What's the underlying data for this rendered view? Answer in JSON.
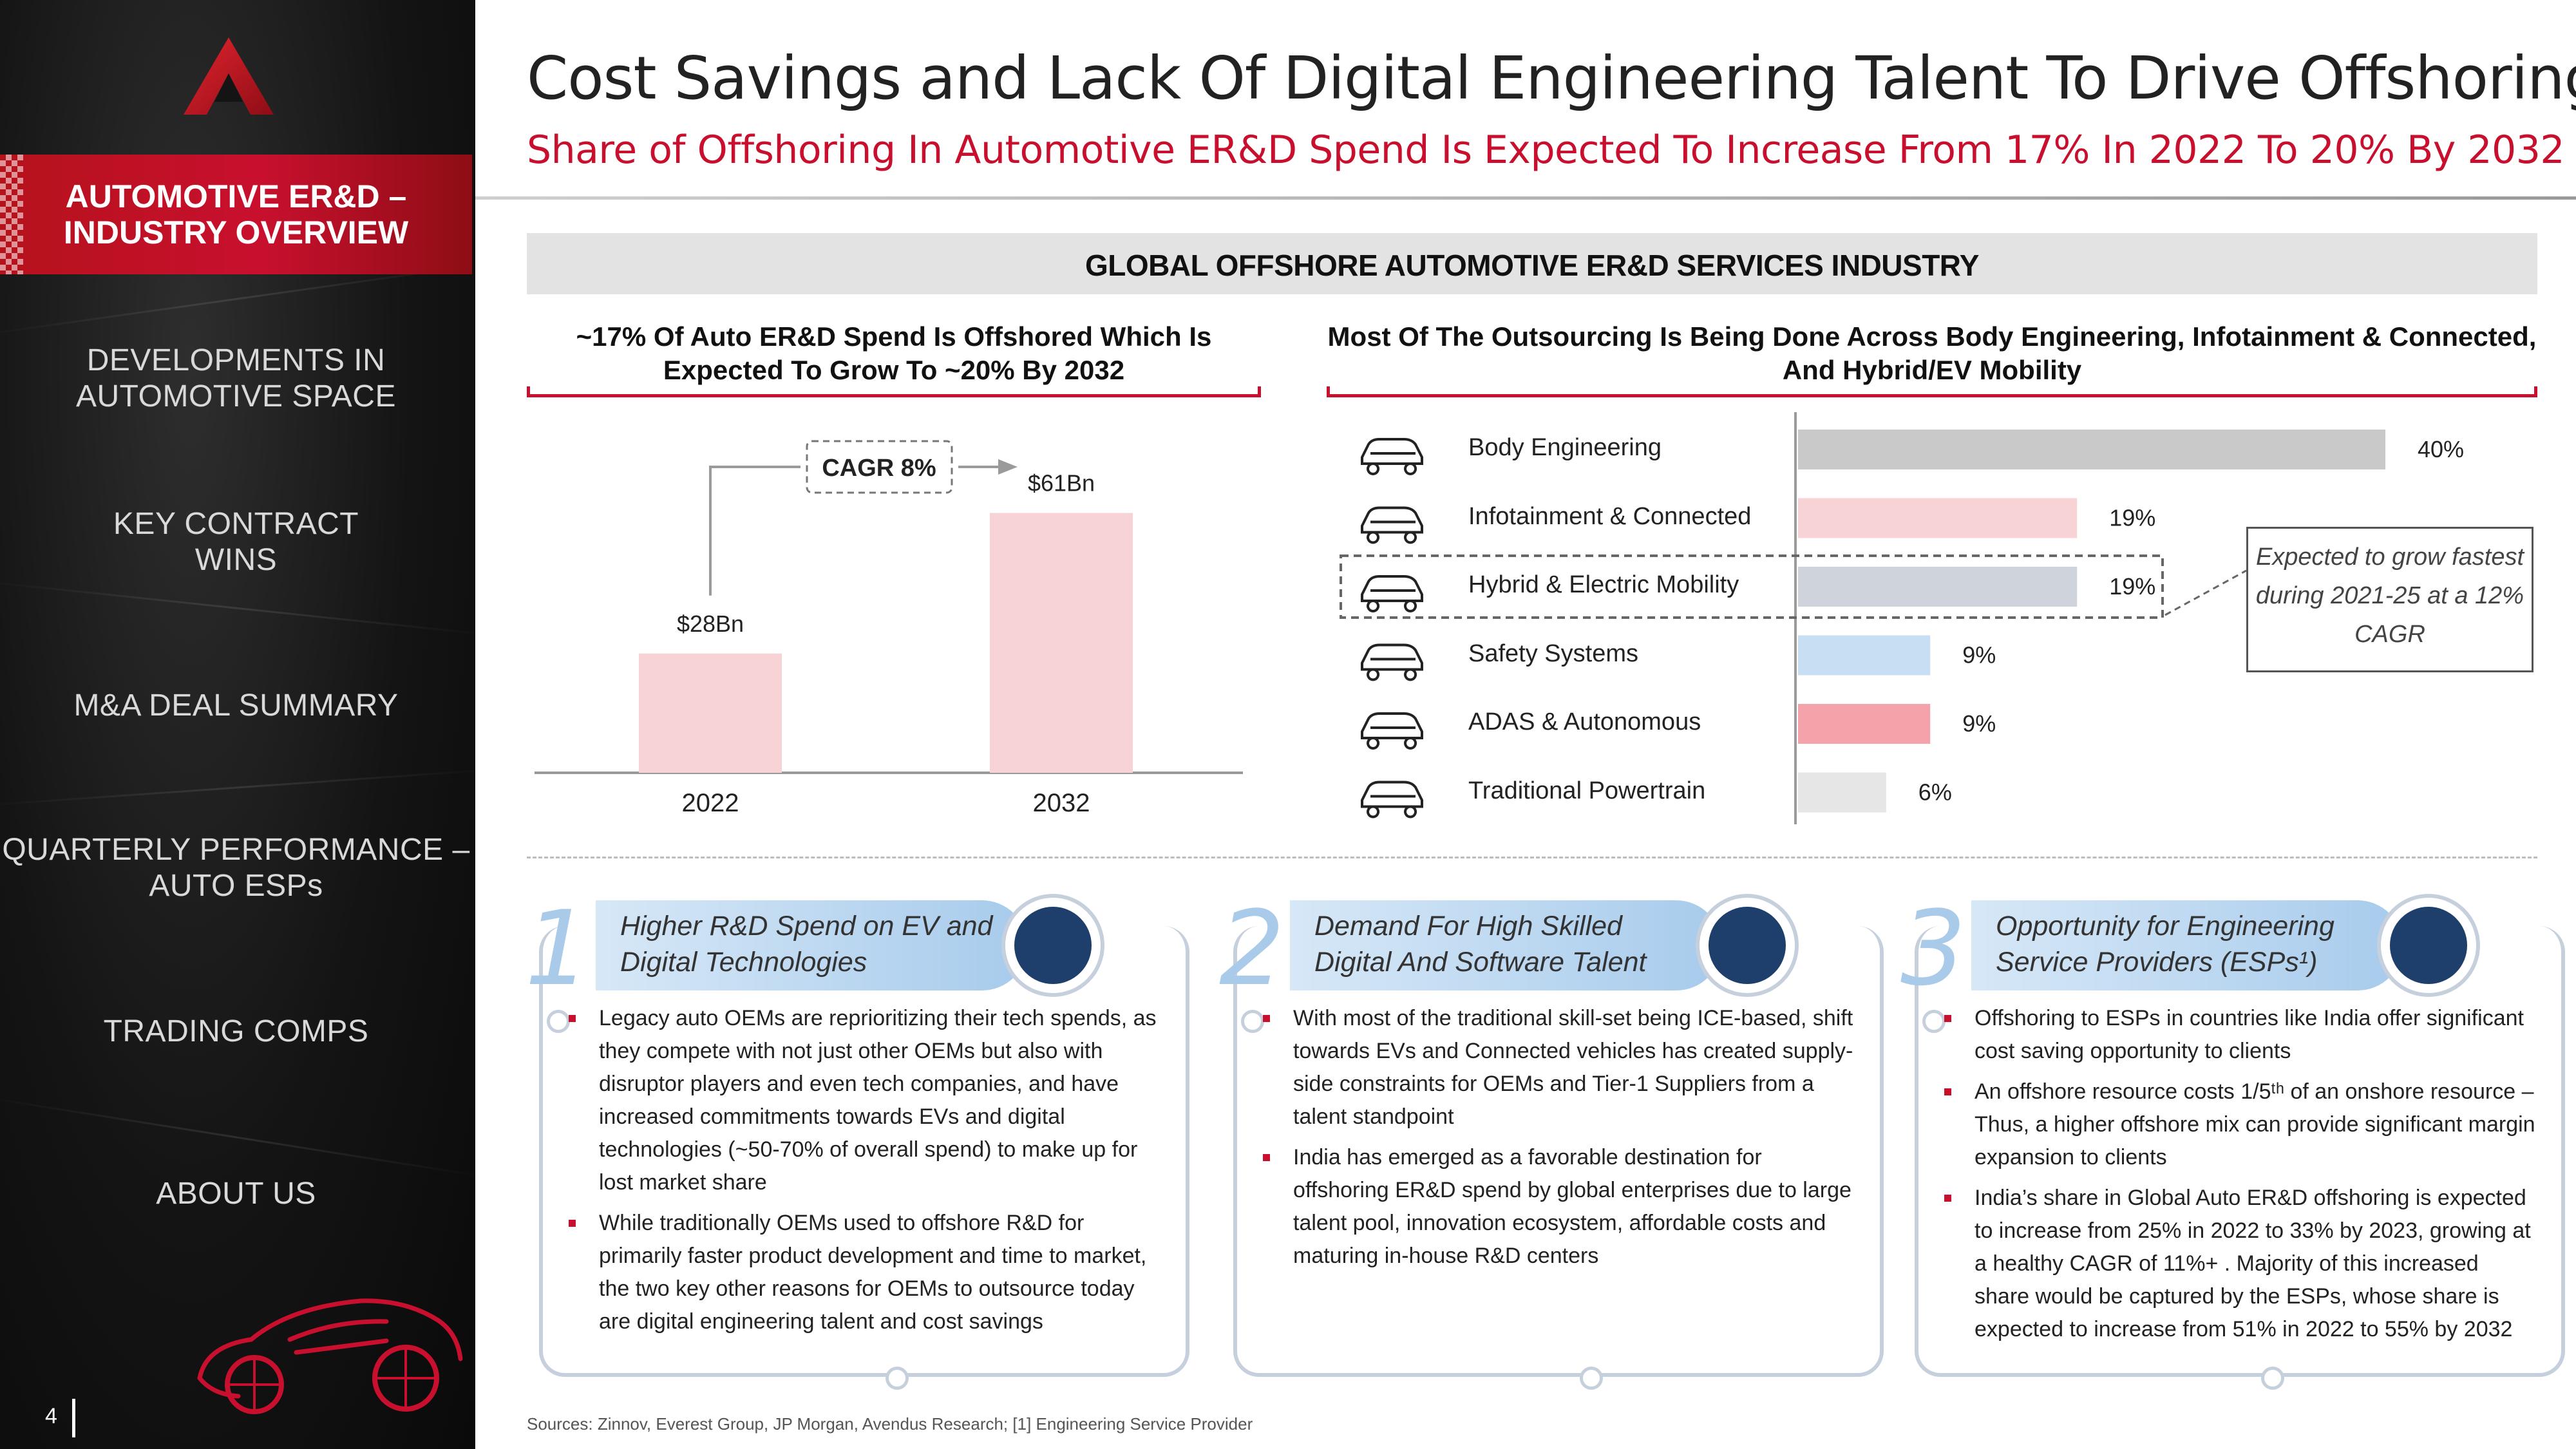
{
  "sidebar": {
    "active_item": "AUTOMOTIVE ER&D –\nINDUSTRY OVERVIEW",
    "items": [
      "DEVELOPMENTS IN\nAUTOMOTIVE SPACE",
      "KEY CONTRACT\nWINS",
      "M&A DEAL SUMMARY",
      "QUARTERLY PERFORMANCE –\nAUTO ESPs",
      "TRADING COMPS",
      "ABOUT US"
    ],
    "page_number": "4"
  },
  "header": {
    "title": "Cost Savings and Lack Of Digital Engineering Talent To Drive Offshoring",
    "subtitle": "Share of Offshoring In Automotive ER&D Spend Is Expected To Increase From 17% In 2022 To 20% By 2032"
  },
  "section": {
    "band_title": "GLOBAL OFFSHORE AUTOMOTIVE ER&D SERVICES INDUSTRY",
    "left_heading": "~17% Of Auto ER&D Spend Is Offshored Which Is Expected To Grow To ~20% By 2032",
    "right_heading": "Most Of The Outsourcing Is Being Done Across Body Engineering, Infotainment & Connected, And Hybrid/EV Mobility",
    "callout": "Expected to grow fastest during 2021-25 at a 12% CAGR"
  },
  "chart_data": [
    {
      "type": "bar",
      "categories": [
        "2022",
        "2032"
      ],
      "values": [
        28,
        61
      ],
      "value_labels": [
        "$28Bn",
        "$61Bn"
      ],
      "annotation": "CAGR 8%",
      "ylim": [
        0,
        65
      ],
      "colors": {
        "bar": "#f7d3d6",
        "axis": "#999999"
      }
    },
    {
      "type": "bar",
      "orientation": "horizontal",
      "categories": [
        "Body Engineering",
        "Infotainment & Connected",
        "Hybrid & Electric Mobility",
        "Safety Systems",
        "ADAS & Autonomous",
        "Traditional Powertrain"
      ],
      "values": [
        40,
        19,
        19,
        9,
        9,
        6
      ],
      "value_labels": [
        "40%",
        "19%",
        "19%",
        "9%",
        "9%",
        "6%"
      ],
      "icons": [
        "car-gear-icon",
        "connected-car-icon",
        "ev-car-icon",
        "safety-shield-car-icon",
        "autonomous-car-icon",
        "powertrain-chassis-icon"
      ],
      "highlight": "Hybrid & Electric Mobility",
      "bar_colors": [
        "#c9c9c9",
        "#f7d3d6",
        "#cfd4dc",
        "#c8def3",
        "#f4a3aa",
        "#e6e6e6"
      ],
      "xlim": [
        0,
        40
      ]
    }
  ],
  "cards": [
    {
      "number": "1",
      "title": "Higher R&D Spend on EV and Digital Technologies",
      "icon": "money-garage-icon",
      "bullets": [
        "Legacy auto OEMs are reprioritizing their tech spends, as they compete with not just other OEMs but also with disruptor players and even tech companies, and have increased commitments towards EVs and digital technologies (~50-70% of overall spend) to make up for lost market share",
        "While traditionally OEMs used to offshore R&D for primarily faster product development and time to market, the two key other reasons for OEMs to outsource today are digital engineering talent and cost savings"
      ]
    },
    {
      "number": "2",
      "title": "Demand For High Skilled Digital And Software Talent",
      "icon": "engineer-gear-icon",
      "bullets": [
        "With most of the traditional skill-set being ICE-based, shift towards EVs and Connected vehicles has created supply-side constraints for OEMs and Tier-1 Suppliers from a talent standpoint",
        "India has emerged as a favorable destination for offshoring ER&D spend by global enterprises due to large talent pool, innovation ecosystem, affordable costs and maturing in-house R&D centers"
      ]
    },
    {
      "number": "3",
      "title": "Opportunity for Engineering Service Providers (ESPs¹)",
      "icon": "hand-gear-icon",
      "bullets": [
        "Offshoring to ESPs in countries like India offer significant cost saving opportunity to clients",
        "An offshore resource costs 1/5ᵗʰ of an onshore resource – Thus, a higher offshore mix can provide significant margin expansion to clients",
        "India’s share in Global Auto ER&D offshoring is expected to increase from 25% in 2022 to 33% by 2023, growing at a healthy CAGR of 11%+ . Majority of this increased share would be captured by the ESPs, whose share is expected to increase from 51% in 2022 to 55% by 2032"
      ]
    }
  ],
  "sources": "Sources: Zinnov, Everest Group, JP Morgan, Avendus Research; [1] Engineering Service Provider"
}
